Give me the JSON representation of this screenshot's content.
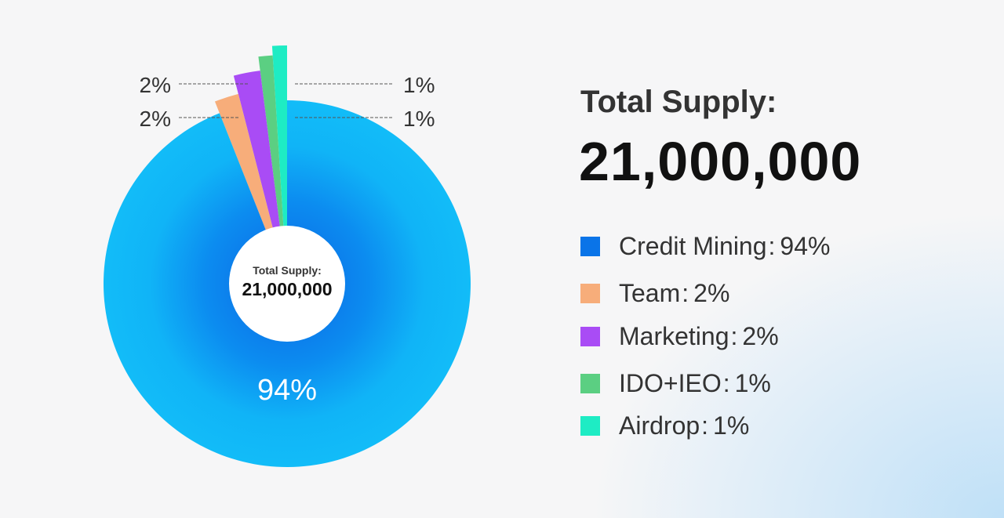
{
  "header": {
    "title": "Total Supply:",
    "total": "21,000,000"
  },
  "center": {
    "title": "Total Supply:",
    "total": "21,000,000"
  },
  "legend": [
    {
      "label": "Credit Mining",
      "value": "94%",
      "color": "#0a74e8"
    },
    {
      "label": "Team",
      "value": "2%",
      "color": "#f7ad7a"
    },
    {
      "label": "Marketing",
      "value": "2%",
      "color": "#a94cf5"
    },
    {
      "label": "IDO+IEO",
      "value": "1%",
      "color": "#5bcf82"
    },
    {
      "label": "Airdrop",
      "value": "1%",
      "color": "#1eecc4"
    }
  ],
  "chart_data": {
    "type": "pie",
    "title": "Total Supply:",
    "subtitle": "21,000,000",
    "categories": [
      "Credit Mining",
      "Team",
      "Marketing",
      "IDO+IEO",
      "Airdrop"
    ],
    "values": [
      94,
      2,
      2,
      1,
      1
    ],
    "data_labels": [
      "94%",
      "2%",
      "2%",
      "1%",
      "1%"
    ],
    "colors": [
      "#10b4f5",
      "#f7ad7a",
      "#a94cf5",
      "#5bcf82",
      "#1eecc4"
    ],
    "legend": "right"
  }
}
